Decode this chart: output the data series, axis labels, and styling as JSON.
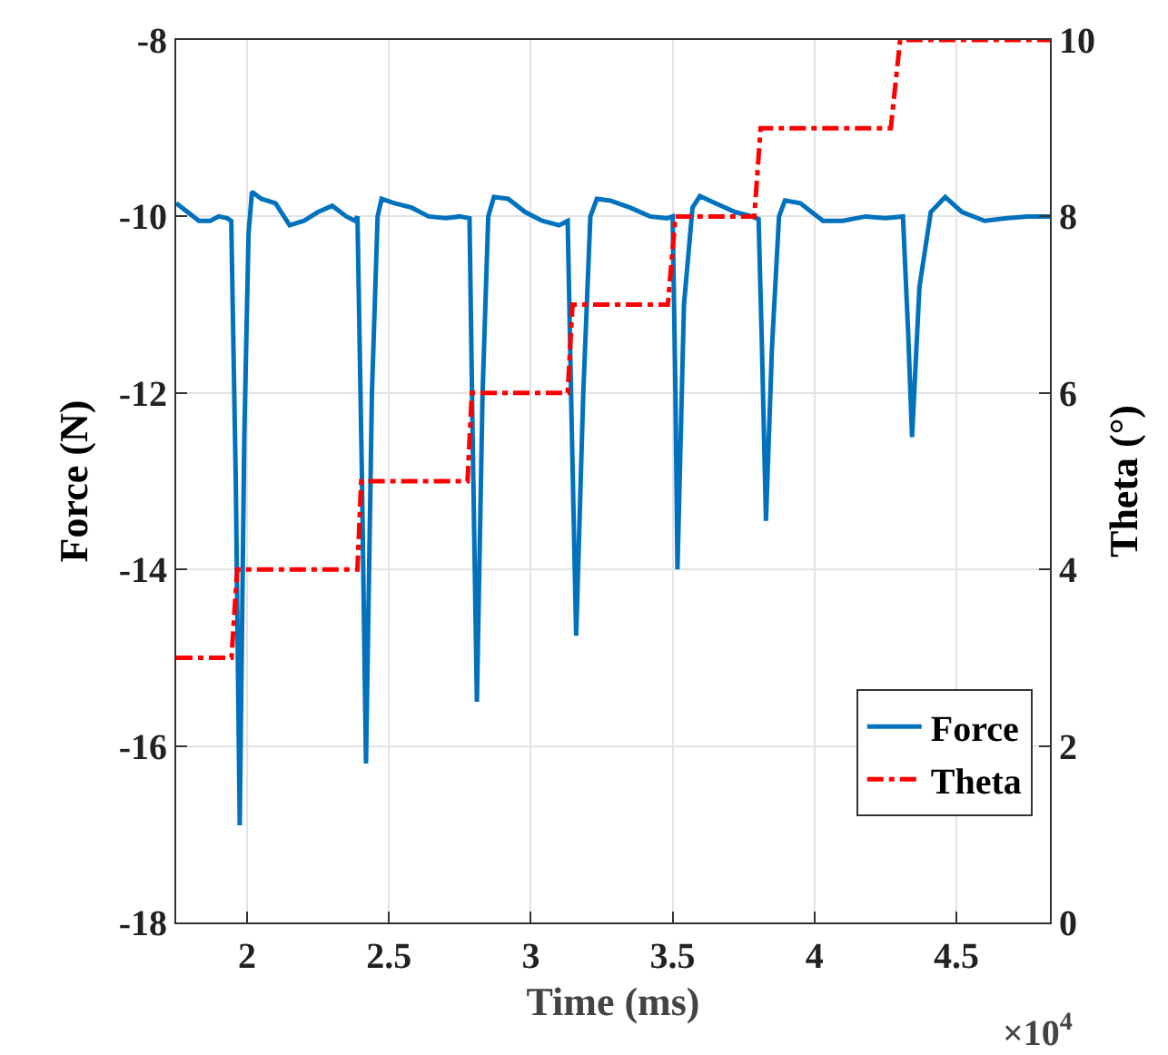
{
  "chart_data": {
    "type": "line",
    "xlabel": "Time (ms)",
    "ylabel": "Force (N)",
    "y2label": "Theta (°)",
    "annotations": [
      "×10$^{4}$"
    ],
    "xlim": [
      1.75,
      4.83
    ],
    "xticks": [
      2,
      2.5,
      3,
      3.5,
      4,
      4.5
    ],
    "ylim": [
      -18,
      -8
    ],
    "yticks": [
      -18,
      -16,
      -14,
      -12,
      -10,
      -8
    ],
    "y2lim": [
      0,
      10
    ],
    "y2ticks": [
      0,
      2,
      4,
      6,
      8,
      10
    ],
    "grid": true,
    "legend": "bottom right",
    "series": [
      {
        "name": "Force",
        "color": "#0072bd",
        "line_style": "solid",
        "x": [
          1.75,
          1.79,
          1.83,
          1.87,
          1.9,
          1.93,
          1.944,
          1.96,
          1.974,
          1.99,
          2.005,
          2.017,
          2.05,
          2.1,
          2.15,
          2.2,
          2.25,
          2.3,
          2.35,
          2.38,
          2.389,
          2.405,
          2.419,
          2.44,
          2.46,
          2.474,
          2.52,
          2.58,
          2.64,
          2.7,
          2.75,
          2.784,
          2.795,
          2.81,
          2.83,
          2.85,
          2.87,
          2.92,
          2.98,
          3.04,
          3.1,
          3.13,
          3.145,
          3.16,
          3.185,
          3.21,
          3.233,
          3.28,
          3.35,
          3.42,
          3.48,
          3.5,
          3.51,
          3.517,
          3.54,
          3.57,
          3.596,
          3.65,
          3.72,
          3.78,
          3.803,
          3.815,
          3.829,
          3.85,
          3.875,
          3.896,
          3.95,
          4.03,
          4.1,
          4.18,
          4.25,
          4.312,
          4.33,
          4.344,
          4.37,
          4.41,
          4.461,
          4.52,
          4.6,
          4.68,
          4.75,
          4.83
        ],
        "values": [
          -9.85,
          -9.95,
          -10.05,
          -10.05,
          -10.0,
          -10.02,
          -10.05,
          -13.0,
          -16.9,
          -12.5,
          -10.2,
          -9.72,
          -9.8,
          -9.85,
          -10.1,
          -10.05,
          -9.95,
          -9.88,
          -10.0,
          -10.05,
          -10.0,
          -13.0,
          -16.2,
          -12.0,
          -10.0,
          -9.8,
          -9.85,
          -9.9,
          -10.0,
          -10.02,
          -10.0,
          -10.02,
          -12.5,
          -15.5,
          -12.0,
          -10.0,
          -9.78,
          -9.8,
          -9.95,
          -10.05,
          -10.1,
          -10.05,
          -12.5,
          -14.75,
          -12.0,
          -10.0,
          -9.8,
          -9.82,
          -9.9,
          -10.0,
          -10.02,
          -10.0,
          -12.0,
          -14.0,
          -11.0,
          -9.9,
          -9.77,
          -9.85,
          -9.95,
          -10.0,
          -10.03,
          -11.5,
          -13.45,
          -11.5,
          -10.0,
          -9.82,
          -9.85,
          -10.05,
          -10.05,
          -10.0,
          -10.02,
          -10.0,
          -11.3,
          -12.5,
          -10.8,
          -9.95,
          -9.78,
          -9.95,
          -10.05,
          -10.02,
          -10.0,
          -10.0
        ]
      },
      {
        "name": "Theta",
        "color": "#ff0000",
        "axis": "y2",
        "line_style": "dashdot",
        "x": [
          1.75,
          1.945,
          1.965,
          2.389,
          2.402,
          2.777,
          2.792,
          3.13,
          3.147,
          3.483,
          3.51,
          3.788,
          3.81,
          4.269,
          4.302,
          4.83
        ],
        "values": [
          3,
          3,
          4,
          4,
          5,
          5,
          6,
          6,
          7,
          7,
          8,
          8,
          9,
          9,
          10,
          10
        ]
      }
    ]
  }
}
